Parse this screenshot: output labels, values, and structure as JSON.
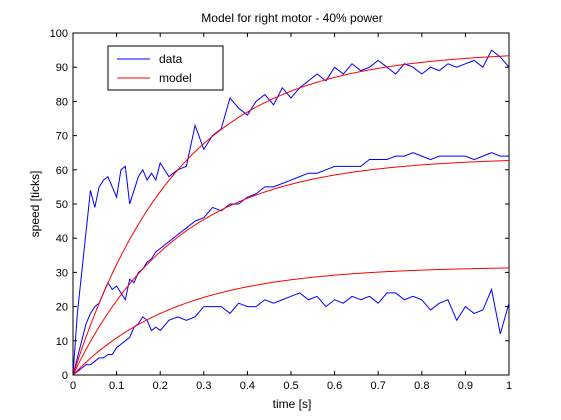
{
  "chart_data": {
    "type": "line",
    "title": "Model for right motor - 40% power",
    "xlabel": "time [s]",
    "ylabel": "speed [ticks]",
    "xlim": [
      0,
      1
    ],
    "ylim": [
      0,
      100
    ],
    "xticks": [
      0,
      0.1,
      0.2,
      0.3,
      0.4,
      0.5,
      0.6,
      0.7,
      0.8,
      0.9,
      1
    ],
    "yticks": [
      0,
      10,
      20,
      30,
      40,
      50,
      60,
      70,
      80,
      90,
      100
    ],
    "grid": false,
    "legend": {
      "placement": "top-left",
      "entries": [
        {
          "label": "data",
          "color": "#0000ff"
        },
        {
          "label": "model",
          "color": "#ff0000"
        }
      ]
    },
    "series": [
      {
        "name": "data",
        "color": "#0000ff",
        "x": [
          0,
          0.01,
          0.02,
          0.03,
          0.04,
          0.05,
          0.06,
          0.07,
          0.08,
          0.09,
          0.1,
          0.11,
          0.12,
          0.13,
          0.14,
          0.15,
          0.16,
          0.17,
          0.18,
          0.19,
          0.2,
          0.22,
          0.24,
          0.26,
          0.28,
          0.3,
          0.32,
          0.34,
          0.36,
          0.38,
          0.4,
          0.42,
          0.44,
          0.46,
          0.48,
          0.5,
          0.52,
          0.54,
          0.56,
          0.58,
          0.6,
          0.62,
          0.64,
          0.66,
          0.68,
          0.7,
          0.72,
          0.74,
          0.76,
          0.78,
          0.8,
          0.82,
          0.84,
          0.86,
          0.88,
          0.9,
          0.92,
          0.94,
          0.96,
          0.98,
          1.0
        ],
        "values": [
          0,
          18,
          30,
          42,
          54,
          49,
          55,
          57,
          58,
          55,
          52,
          60,
          61,
          50,
          54,
          58,
          60,
          57,
          59,
          57,
          62,
          58,
          60,
          61,
          73,
          66,
          70,
          72,
          81,
          78,
          76,
          80,
          82,
          79,
          84,
          81,
          84,
          86,
          88,
          86,
          90,
          88,
          91,
          89,
          90,
          92,
          90,
          88,
          91,
          90,
          88,
          90,
          89,
          91,
          90,
          91,
          92,
          90,
          95,
          93,
          90
        ]
      },
      {
        "name": "data",
        "color": "#0000ff",
        "x": [
          0,
          0.01,
          0.02,
          0.03,
          0.04,
          0.05,
          0.06,
          0.07,
          0.08,
          0.09,
          0.1,
          0.11,
          0.12,
          0.13,
          0.14,
          0.15,
          0.16,
          0.17,
          0.18,
          0.19,
          0.2,
          0.22,
          0.24,
          0.26,
          0.28,
          0.3,
          0.32,
          0.34,
          0.36,
          0.38,
          0.4,
          0.42,
          0.44,
          0.46,
          0.48,
          0.5,
          0.52,
          0.54,
          0.56,
          0.58,
          0.6,
          0.62,
          0.64,
          0.66,
          0.68,
          0.7,
          0.72,
          0.74,
          0.76,
          0.78,
          0.8,
          0.82,
          0.84,
          0.86,
          0.88,
          0.9,
          0.92,
          0.94,
          0.96,
          0.98,
          1.0
        ],
        "values": [
          0,
          5,
          10,
          15,
          18,
          20,
          21,
          24,
          27,
          25,
          26,
          24,
          22,
          28,
          27,
          30,
          31,
          33,
          34,
          36,
          37,
          39,
          41,
          43,
          45,
          46,
          49,
          48,
          50,
          50,
          52,
          53,
          55,
          55,
          56,
          57,
          58,
          59,
          59,
          60,
          61,
          61,
          61,
          61,
          63,
          63,
          63,
          64,
          64,
          65,
          64,
          63,
          64,
          64,
          64,
          64,
          63,
          64,
          65,
          64,
          64
        ]
      },
      {
        "name": "data",
        "color": "#0000ff",
        "x": [
          0,
          0.01,
          0.02,
          0.03,
          0.04,
          0.05,
          0.06,
          0.07,
          0.08,
          0.09,
          0.1,
          0.11,
          0.12,
          0.13,
          0.14,
          0.15,
          0.16,
          0.17,
          0.18,
          0.19,
          0.2,
          0.22,
          0.24,
          0.26,
          0.28,
          0.3,
          0.32,
          0.34,
          0.36,
          0.38,
          0.4,
          0.42,
          0.44,
          0.46,
          0.48,
          0.5,
          0.52,
          0.54,
          0.56,
          0.58,
          0.6,
          0.62,
          0.64,
          0.66,
          0.68,
          0.7,
          0.72,
          0.74,
          0.76,
          0.78,
          0.8,
          0.82,
          0.84,
          0.86,
          0.88,
          0.9,
          0.92,
          0.94,
          0.96,
          0.98,
          1.0
        ],
        "values": [
          0,
          1,
          2,
          3,
          3,
          4,
          5,
          5,
          6,
          6,
          8,
          9,
          10,
          11,
          14,
          15,
          17,
          16,
          13,
          14,
          13,
          16,
          17,
          16,
          17,
          20,
          20,
          20,
          18,
          21,
          20,
          20,
          22,
          21,
          22,
          23,
          24,
          22,
          23,
          20,
          22,
          21,
          23,
          22,
          23,
          21,
          24,
          24,
          22,
          23,
          22,
          19,
          21,
          22,
          16,
          20,
          18,
          19,
          25,
          12,
          21
        ]
      },
      {
        "name": "model",
        "color": "#ff0000",
        "function": "a*(1-exp(-t/tau))",
        "a": 94.8,
        "tau": 0.24
      },
      {
        "name": "model",
        "color": "#ff0000",
        "function": "a*(1-exp(-t/tau))",
        "a": 63.7,
        "tau": 0.24
      },
      {
        "name": "model",
        "color": "#ff0000",
        "function": "a*(1-exp(-t/tau))",
        "a": 31.8,
        "tau": 0.24
      }
    ]
  }
}
